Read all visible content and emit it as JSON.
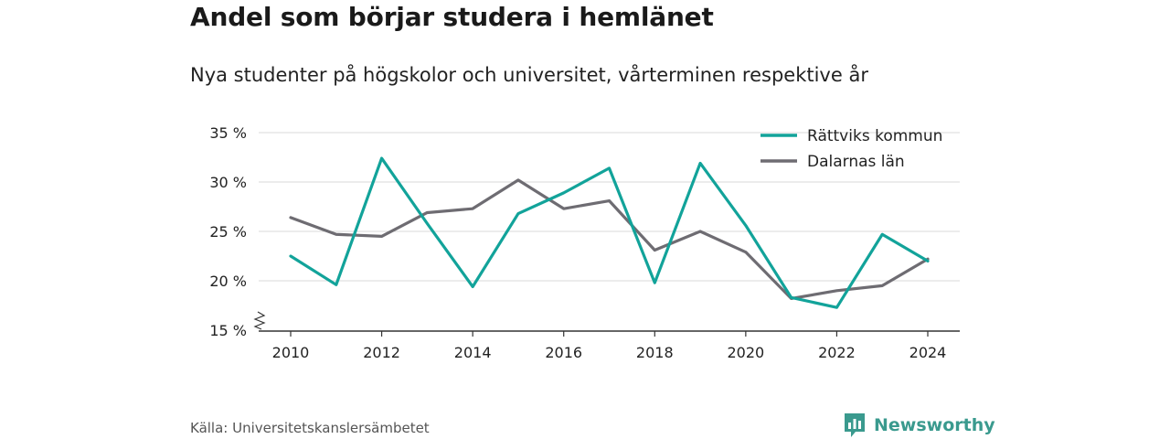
{
  "header": {
    "title": "Andel som börjar studera i hemlänet",
    "subtitle": "Nya studenter på högskolor och universitet, vårterminen respektive år"
  },
  "footer": {
    "source": "Källa: Universitetskanslersämbetet",
    "brand": "Newsworthy"
  },
  "colors": {
    "accent": "#12a39a",
    "secondary": "#6e6c72",
    "brand": "#3a9a8e"
  },
  "chart_data": {
    "type": "line",
    "title": "Andel som börjar studera i hemlänet",
    "subtitle": "Nya studenter på högskolor och universitet, vårterminen respektive år",
    "x": [
      2010,
      2011,
      2012,
      2013,
      2014,
      2015,
      2016,
      2017,
      2018,
      2019,
      2020,
      2021,
      2022,
      2023,
      2024
    ],
    "series": [
      {
        "name": "Rättviks kommun",
        "color": "#12a39a",
        "values": [
          22.5,
          19.6,
          32.4,
          25.8,
          19.4,
          26.8,
          28.9,
          31.4,
          19.8,
          31.9,
          25.6,
          18.3,
          17.3,
          24.7,
          22.0
        ]
      },
      {
        "name": "Dalarnas län",
        "color": "#6e6c72",
        "values": [
          26.4,
          24.7,
          24.5,
          26.9,
          27.3,
          30.2,
          27.3,
          28.1,
          23.1,
          25.0,
          22.9,
          18.2,
          19.0,
          19.5,
          22.2
        ]
      }
    ],
    "y_ticks": [
      "35 %",
      "30 %",
      "25 %",
      "20 %",
      "15 %"
    ],
    "y_tick_values": [
      35,
      30,
      25,
      20,
      15
    ],
    "x_ticks": [
      "2010",
      "2012",
      "2014",
      "2016",
      "2018",
      "2020",
      "2022",
      "2024"
    ],
    "x_tick_values": [
      2010,
      2012,
      2014,
      2016,
      2018,
      2020,
      2022,
      2024
    ],
    "ylim": [
      15,
      35
    ],
    "xlim": [
      2010,
      2024
    ],
    "y_axis_break": true,
    "grid": "horizontal",
    "legend_position": "top-right"
  }
}
